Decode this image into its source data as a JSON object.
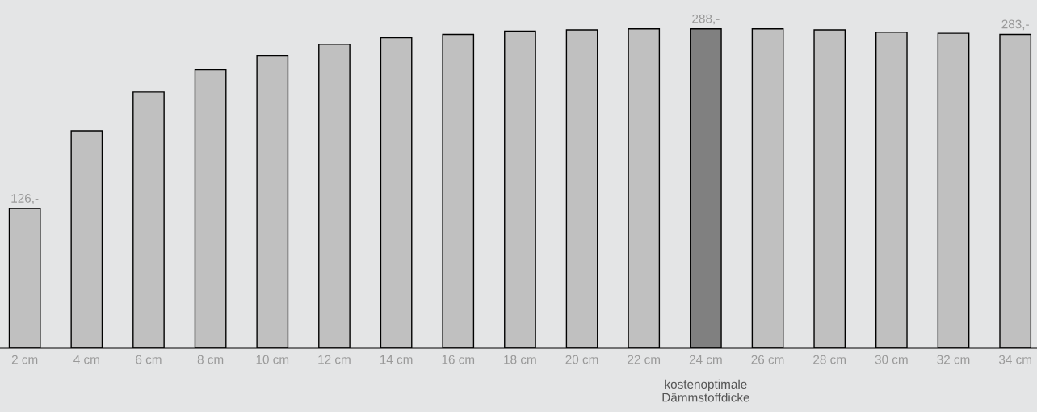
{
  "chart_data": {
    "type": "bar",
    "categories": [
      "2 cm",
      "4 cm",
      "6 cm",
      "8 cm",
      "10 cm",
      "12 cm",
      "14 cm",
      "16 cm",
      "18 cm",
      "20 cm",
      "22 cm",
      "24 cm",
      "26 cm",
      "28 cm",
      "30 cm",
      "32 cm",
      "34 cm"
    ],
    "values": [
      126,
      196,
      231,
      251,
      264,
      274,
      280,
      283,
      286,
      287,
      288,
      288,
      288,
      287,
      285,
      284,
      283
    ],
    "value_labels": [
      "126,-",
      null,
      null,
      null,
      null,
      null,
      null,
      null,
      null,
      null,
      null,
      "288,-",
      null,
      null,
      null,
      null,
      "283,-"
    ],
    "colors": [
      "#c0c0c0",
      "#c0c0c0",
      "#c0c0c0",
      "#c0c0c0",
      "#c0c0c0",
      "#c0c0c0",
      "#c0c0c0",
      "#c0c0c0",
      "#c0c0c0",
      "#c0c0c0",
      "#c0c0c0",
      "#808080",
      "#c0c0c0",
      "#c0c0c0",
      "#c0c0c0",
      "#c0c0c0",
      "#c0c0c0"
    ],
    "ylim": [
      0,
      314
    ],
    "tick_labels": "x",
    "grid": false,
    "legend": false,
    "annotations": [
      "kostenoptimale\nDämmstoffdicke"
    ]
  }
}
